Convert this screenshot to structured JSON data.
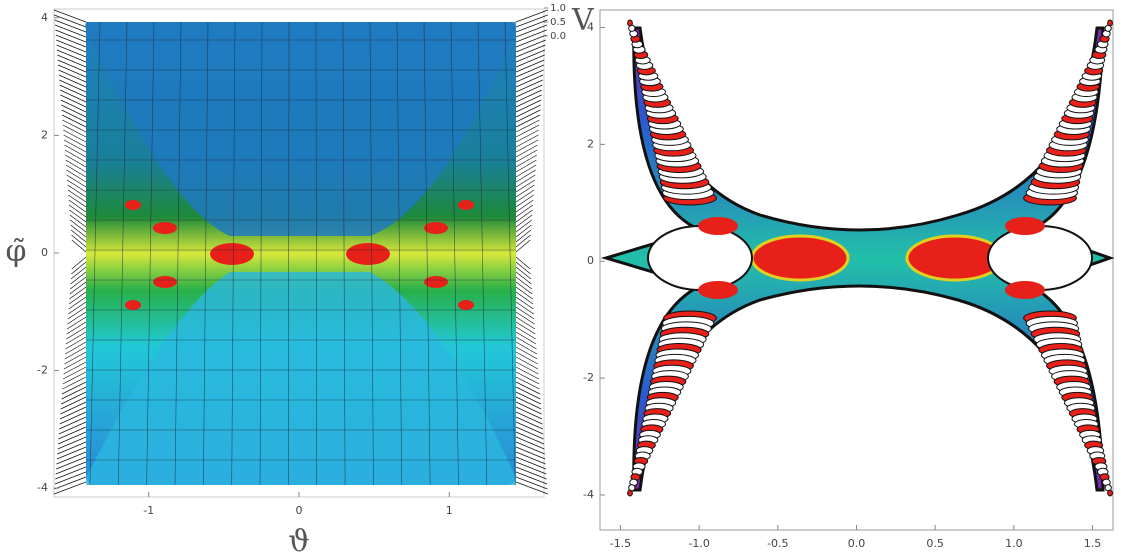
{
  "chart_data": [
    {
      "type": "surface",
      "x_label": "ϑ",
      "y_label": "φ̃",
      "z_label": "V",
      "xlim": [
        -1.63,
        1.63
      ],
      "ylim": [
        -4.15,
        4.15
      ],
      "zlim": [
        0,
        1
      ],
      "xticks": [
        -1,
        0,
        1
      ],
      "yticks": [
        -4,
        -2,
        0,
        2,
        4
      ],
      "zticks": [
        {
          "value": 1,
          "label": "1.0"
        },
        0.5,
        {
          "value": 0,
          "label": "0.0"
        }
      ]
    },
    {
      "type": "contour",
      "xlim": [
        -1.63,
        1.63
      ],
      "ylim": [
        -4.6,
        4.3
      ],
      "xticks": [
        -1.5,
        {
          "value": -1,
          "label": "-1.0"
        },
        -0.5,
        {
          "value": 0,
          "label": "0.0"
        },
        0.5,
        {
          "value": 1,
          "label": "1.0"
        },
        1.5
      ],
      "yticks": [
        -4,
        -2,
        0,
        2,
        4
      ]
    }
  ]
}
